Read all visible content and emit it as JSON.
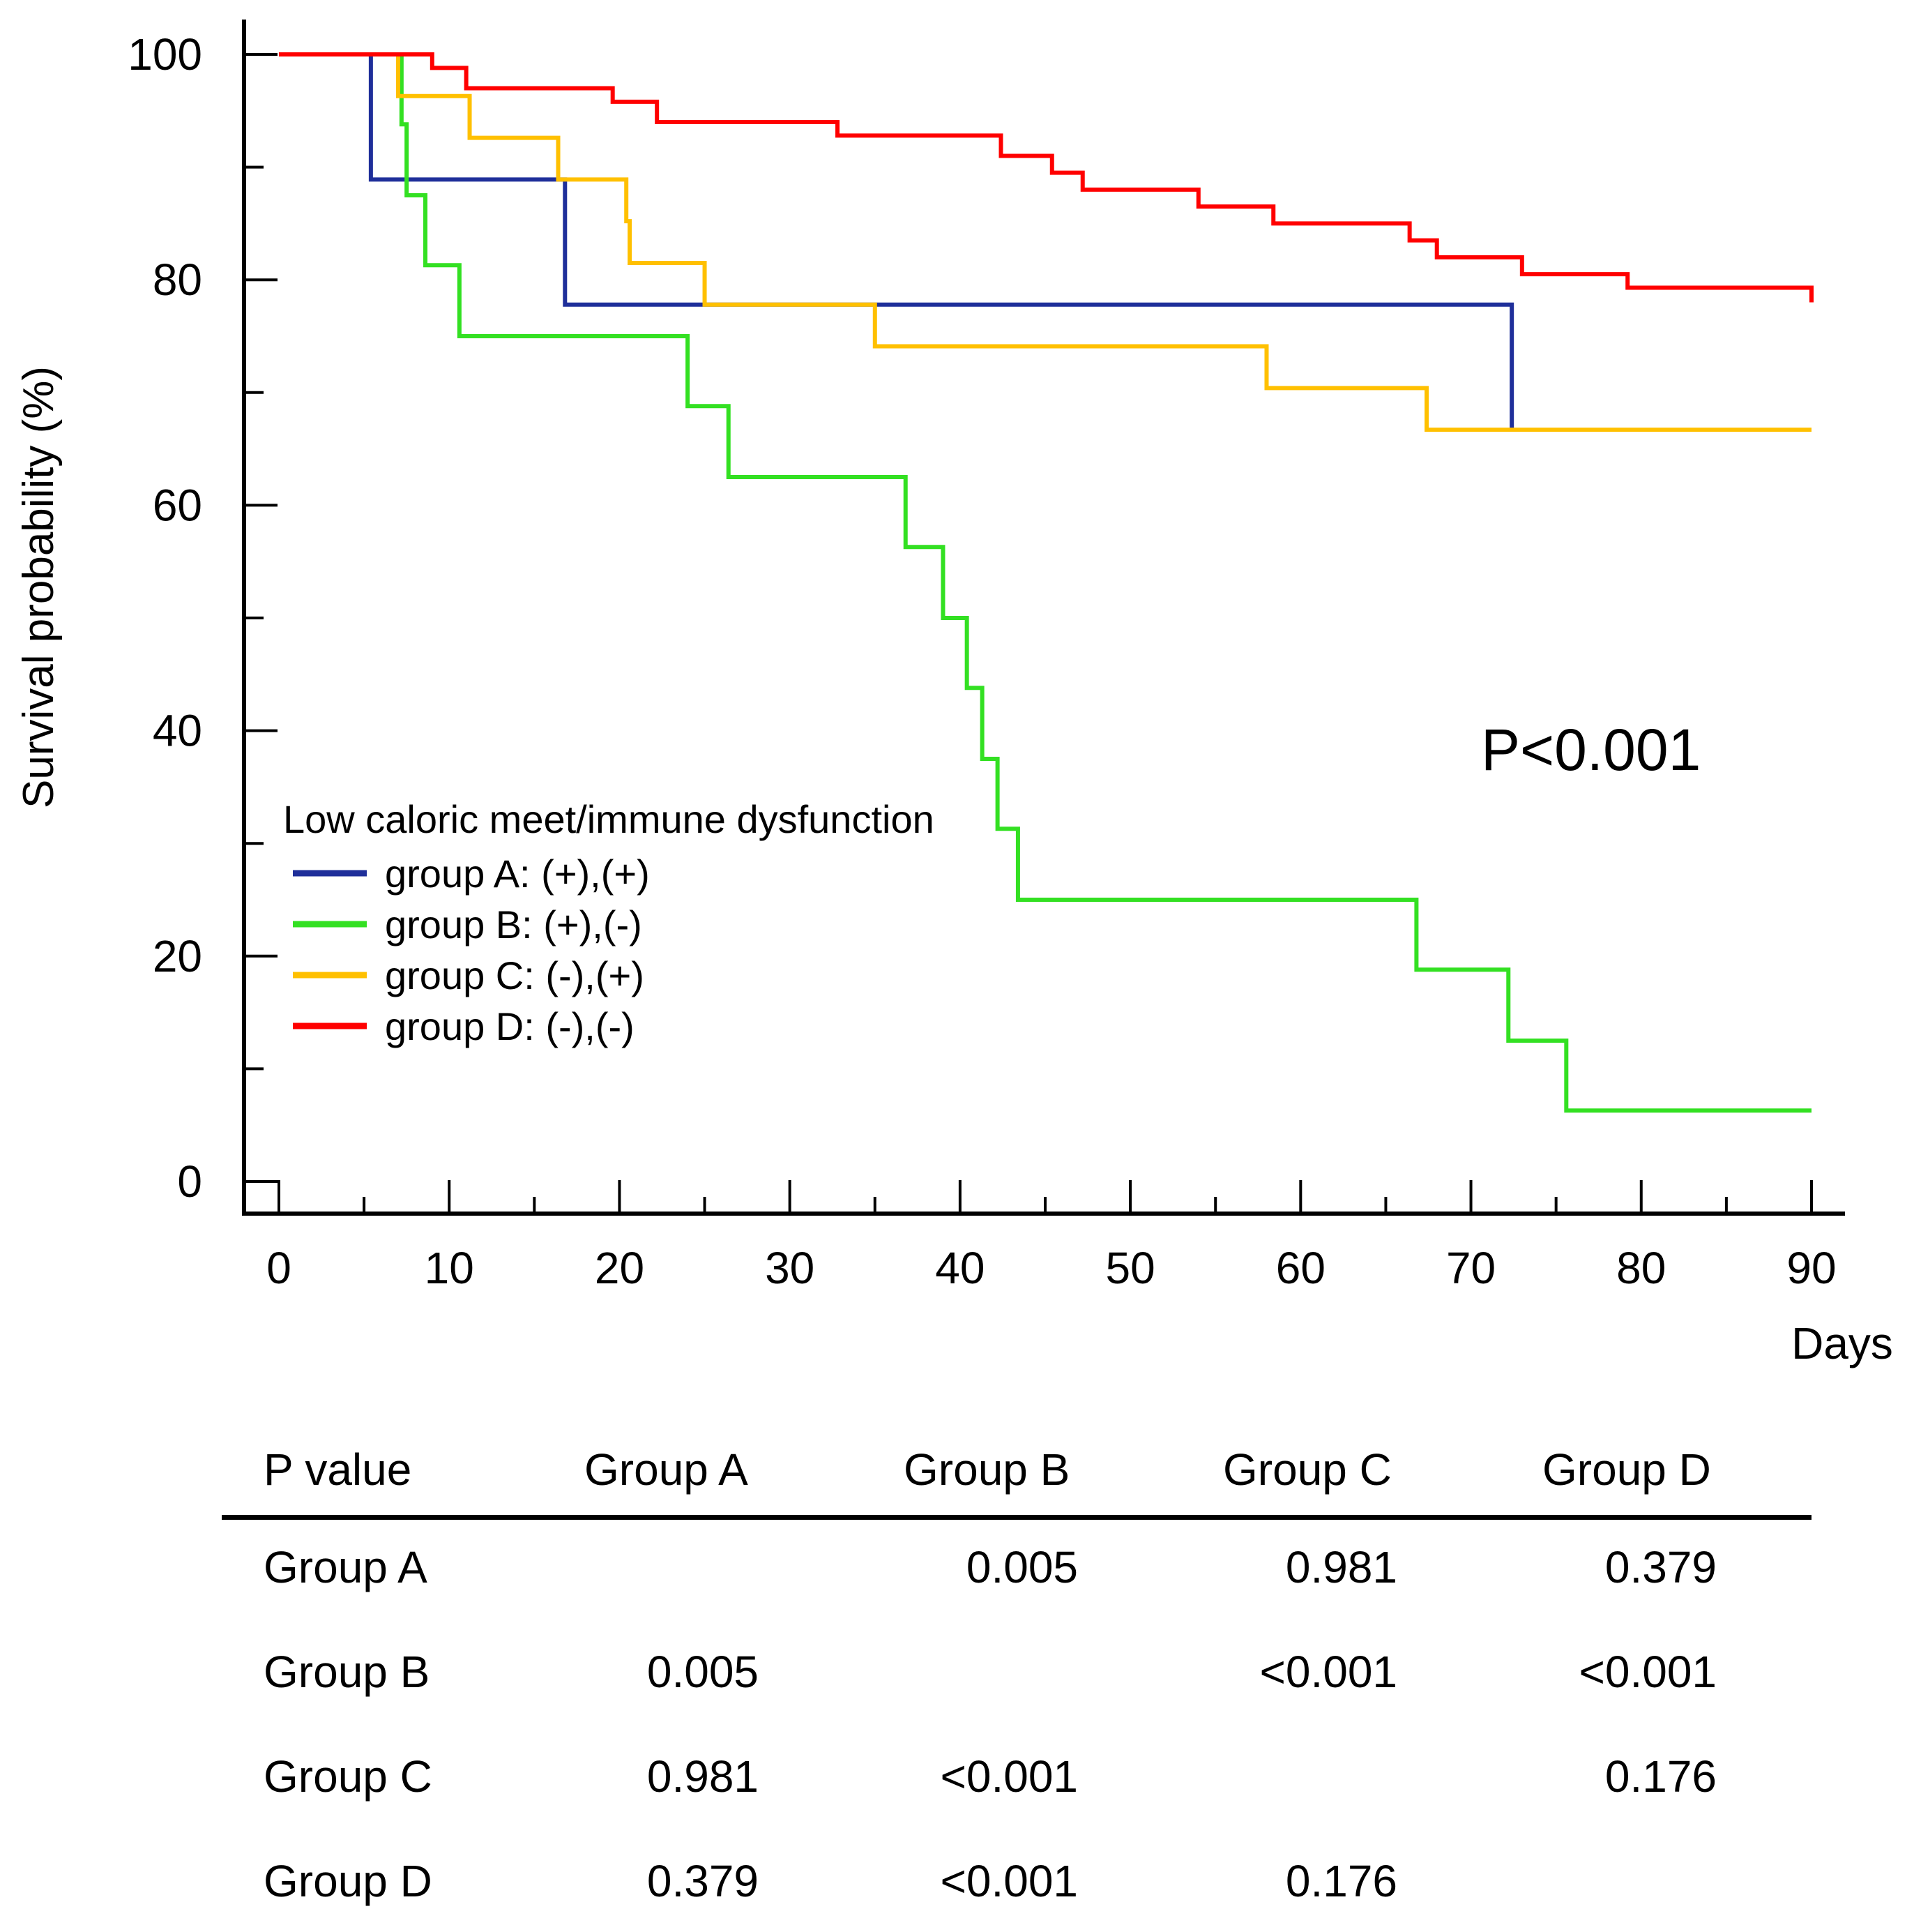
{
  "chart_data": {
    "type": "line",
    "subtype": "kaplan-meier step",
    "xlabel": "Days",
    "ylabel": "Survival probability (%)",
    "xlim": [
      0,
      90
    ],
    "ylim": [
      0,
      100
    ],
    "xticks": [
      0,
      10,
      20,
      30,
      40,
      50,
      60,
      70,
      80,
      90
    ],
    "yticks": [
      0,
      20,
      40,
      60,
      80,
      100
    ],
    "annotation": "P<0.001",
    "legend_title": "Low caloric meet/immune dysfunction",
    "legend_position": "center-left",
    "series": [
      {
        "name": "group A:  (+),(+)",
        "color": "#1f2f9a",
        "x": [
          0,
          5.4,
          16.8,
          72.4,
          72.4
        ],
        "y": [
          100,
          88.9,
          77.8,
          66.7,
          66.7
        ]
      },
      {
        "name": "group B:  (+),(-)",
        "color": "#33e022",
        "x": [
          0,
          7.2,
          7.5,
          7.8,
          8.6,
          10.6,
          24.0,
          26.4,
          36.8,
          39.0,
          40.4,
          41.3,
          42.2,
          43.4,
          66.8,
          72.2,
          75.6,
          90
        ],
        "y": [
          100,
          93.8,
          87.5,
          87.5,
          81.3,
          75.0,
          68.8,
          62.5,
          56.3,
          50.0,
          43.8,
          37.5,
          31.3,
          25.0,
          18.8,
          12.5,
          6.3,
          6.3
        ]
      },
      {
        "name": "group C:  (-),(+)",
        "color": "#ffc000",
        "x": [
          0,
          7.0,
          11.2,
          16.4,
          20.4,
          20.6,
          25.0,
          35.0,
          58.0,
          67.4,
          90
        ],
        "y": [
          100,
          96.3,
          92.6,
          88.9,
          85.2,
          81.5,
          77.8,
          74.1,
          70.4,
          66.7,
          66.7
        ],
        "censor_x": [
          7.0
        ],
        "censor_y": [
          100
        ]
      },
      {
        "name": "group D:  (-),(-)",
        "color": "#ff0000",
        "x": [
          0,
          9.0,
          11.0,
          19.6,
          22.2,
          32.8,
          42.4,
          45.4,
          47.2,
          54.0,
          58.4,
          66.4,
          68.0,
          73.0,
          79.2,
          90
        ],
        "y": [
          100,
          98.8,
          97.0,
          95.8,
          94.0,
          92.8,
          91.0,
          89.5,
          88.0,
          86.5,
          85.0,
          83.5,
          82.0,
          80.5,
          79.3,
          78.0
        ],
        "censor_x": [
          7.0
        ],
        "censor_y": [
          100
        ]
      }
    ]
  },
  "pvalue_table": {
    "header": [
      "P value",
      "Group A",
      "Group B",
      "Group C",
      "Group D"
    ],
    "rows": [
      [
        "Group A",
        "",
        "0.005",
        "0.981",
        "0.379"
      ],
      [
        "Group B",
        "0.005",
        "",
        "<0.001",
        "<0.001"
      ],
      [
        "Group C",
        "0.981",
        "<0.001",
        "",
        "0.176"
      ],
      [
        "Group D",
        "0.379",
        "<0.001",
        "0.176",
        ""
      ]
    ]
  }
}
